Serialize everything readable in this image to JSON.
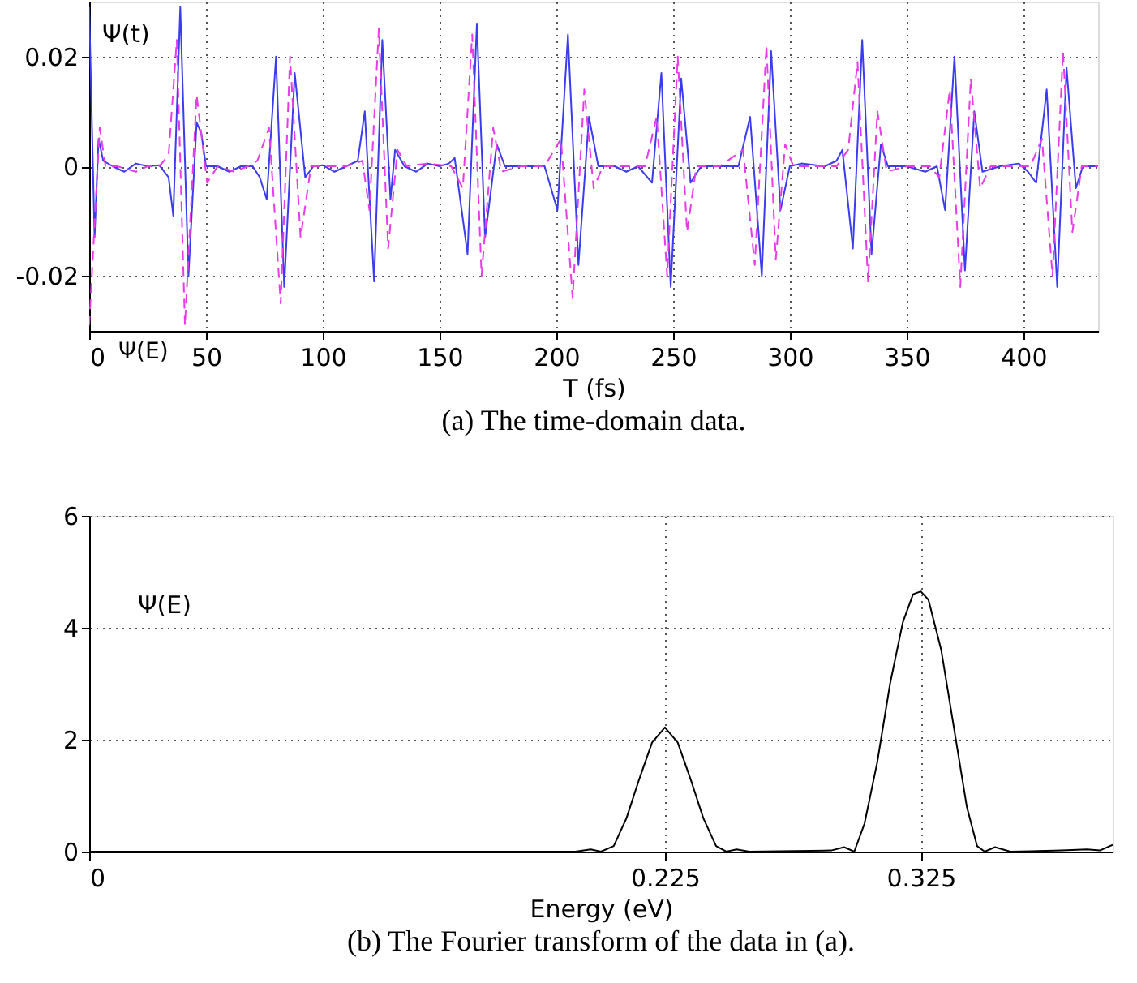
{
  "chart_data": [
    {
      "type": "line",
      "title": "(a) The time-domain data.",
      "xlabel": "T (fs)",
      "ylabel": "Ψ(t)",
      "annotations": [
        "Ψ(E)"
      ],
      "xlim": [
        0,
        432
      ],
      "ylim": [
        -0.03,
        0.03
      ],
      "xticks": [
        0,
        50,
        100,
        150,
        200,
        250,
        300,
        350,
        400
      ],
      "yticks": [
        -0.02,
        0,
        0.02
      ],
      "grid": true,
      "series": [
        {
          "color": "#3b3bf0",
          "line_style": "solid",
          "x": [
            0,
            2.3,
            4,
            6,
            10,
            15,
            20,
            25,
            30,
            34,
            36,
            39,
            42.5,
            46,
            48,
            50,
            55,
            60,
            65,
            70,
            73,
            76,
            80,
            83.5,
            88,
            92.5,
            96,
            100,
            105,
            110,
            115,
            118,
            122,
            125.5,
            129,
            131,
            135,
            140,
            145,
            150,
            154,
            156.5,
            162,
            166,
            169.5,
            174.5,
            178,
            185,
            190,
            195,
            200.5,
            205,
            209.5,
            214,
            218,
            225,
            230,
            235,
            241,
            245,
            249,
            253.5,
            257.5,
            262,
            270,
            278,
            283,
            288,
            292,
            296,
            300,
            305,
            315,
            320,
            322.5,
            327,
            331,
            335,
            339,
            342,
            350,
            358,
            363,
            366.5,
            370.5,
            375,
            379,
            382.5,
            390,
            398,
            402,
            405.5,
            410,
            414.5,
            418.5,
            422.5,
            425.5,
            432
          ],
          "values": [
            0.029,
            -0.013,
            0.005,
            0.001,
            0,
            -0.001,
            0.0005,
            0,
            0.0002,
            -0.002,
            -0.009,
            0.029,
            -0.02,
            0.008,
            0.006,
            0,
            0,
            -0.001,
            0,
            0,
            -0.002,
            -0.006,
            0.02,
            -0.022,
            0.017,
            -0.002,
            0,
            0.0002,
            -0.001,
            0,
            0.001,
            0.01,
            -0.021,
            0.023,
            -0.006,
            0.003,
            0,
            -0.001,
            0.0005,
            0,
            0.0005,
            0.0015,
            -0.016,
            0.026,
            -0.013,
            0.004,
            0,
            0,
            0,
            0,
            -0.008,
            0.024,
            -0.018,
            0.009,
            0,
            0,
            -0.001,
            0,
            -0.003,
            0.017,
            -0.022,
            0.016,
            -0.003,
            0,
            0,
            0,
            0.009,
            -0.02,
            0.021,
            -0.008,
            0,
            0.0005,
            0,
            0.001,
            0.003,
            -0.015,
            0.023,
            -0.016,
            0.004,
            0,
            0,
            -0.001,
            0,
            -0.008,
            0.02,
            -0.019,
            0.01,
            -0.001,
            0,
            0.0005,
            -0.001,
            -0.003,
            0.014,
            -0.022,
            0.018,
            -0.004,
            0,
            0
          ]
        },
        {
          "color": "#e83ae8",
          "line_style": "dashed",
          "x": [
            0,
            4.5,
            7,
            12,
            20,
            25,
            30,
            34,
            37.5,
            41,
            46,
            50.5,
            55,
            62,
            68,
            72,
            77,
            82,
            86,
            90.5,
            95,
            100,
            110,
            117,
            120,
            124,
            128,
            132,
            136,
            145,
            155,
            160,
            164,
            168,
            173,
            176.5,
            185,
            195,
            202,
            207,
            212,
            216,
            220,
            230,
            238,
            243,
            247.5,
            252,
            256,
            260,
            270,
            280,
            285,
            290,
            294,
            298,
            301.5,
            310,
            320,
            325,
            329,
            333.5,
            337.5,
            341.5,
            350,
            360,
            364,
            368.5,
            373,
            377.5,
            381.5,
            386,
            395,
            403,
            408,
            412.5,
            417,
            421,
            425,
            432
          ],
          "values": [
            -0.029,
            0.007,
            0,
            0,
            -0.001,
            0,
            0,
            0.002,
            0.023,
            -0.029,
            0.013,
            -0.003,
            0,
            -0.001,
            0,
            0.001,
            0.007,
            -0.025,
            0.02,
            -0.013,
            0,
            0,
            0,
            0.001,
            -0.008,
            0.025,
            -0.015,
            0.003,
            0,
            0.0005,
            0,
            -0.004,
            0.024,
            -0.02,
            0.007,
            -0.001,
            0,
            0,
            0.005,
            -0.024,
            0.014,
            -0.004,
            0,
            0,
            0,
            0.009,
            -0.02,
            0.02,
            -0.012,
            0,
            0,
            0.003,
            -0.018,
            0.022,
            -0.017,
            0.004,
            0,
            0,
            0,
            0.003,
            0.019,
            -0.021,
            0.01,
            -0.001,
            0,
            0,
            -0.002,
            0.014,
            -0.022,
            0.016,
            -0.004,
            0,
            0,
            0,
            0.005,
            -0.02,
            0.021,
            -0.012,
            0,
            0
          ]
        }
      ]
    },
    {
      "type": "line",
      "title": "(b) The Fourier transform of the data in (a).",
      "xlabel": "Energy (eV)",
      "ylabel": "Ψ(E)",
      "xlim": [
        0,
        0.4
      ],
      "ylim": [
        0,
        6
      ],
      "xticks": [
        0,
        0.225,
        0.325
      ],
      "yticks": [
        0,
        2,
        4,
        6
      ],
      "grid": true,
      "series": [
        {
          "color": "#000000",
          "line_style": "solid",
          "x": [
            0,
            0.19,
            0.196,
            0.2,
            0.205,
            0.21,
            0.215,
            0.22,
            0.225,
            0.23,
            0.235,
            0.24,
            0.245,
            0.249,
            0.253,
            0.258,
            0.29,
            0.295,
            0.299,
            0.303,
            0.308,
            0.313,
            0.318,
            0.322,
            0.325,
            0.328,
            0.333,
            0.338,
            0.343,
            0.347,
            0.35,
            0.354,
            0.36,
            0.38,
            0.39,
            0.395,
            0.4
          ],
          "values": [
            0,
            0,
            0.04,
            0,
            0.1,
            0.6,
            1.3,
            1.95,
            2.22,
            1.95,
            1.3,
            0.6,
            0.1,
            0,
            0.04,
            0,
            0.02,
            0.08,
            0,
            0.5,
            1.6,
            3.0,
            4.1,
            4.6,
            4.65,
            4.5,
            3.6,
            2.2,
            0.8,
            0.1,
            0,
            0.08,
            0,
            0.02,
            0.04,
            0.02,
            0.12
          ]
        }
      ]
    }
  ]
}
